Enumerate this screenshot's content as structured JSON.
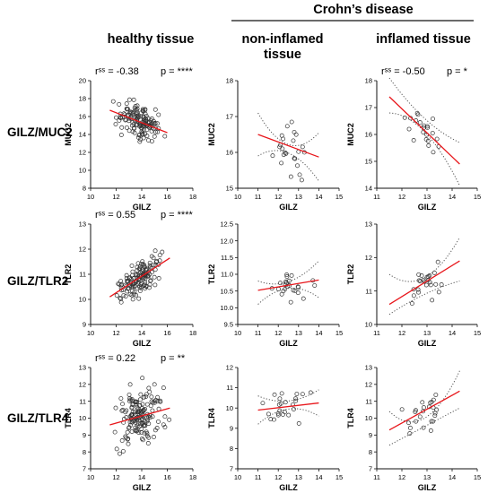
{
  "header": {
    "group_title": "Crohn’s disease",
    "columns": [
      "healthy tissue",
      "non-inflamed tissue",
      "inflamed tissue"
    ]
  },
  "rows": [
    "GILZ/MUC2",
    "GILZ/TLR2",
    "GILZ/TLR4"
  ],
  "colors": {
    "fit_line": "#e8161b",
    "points": "#333333",
    "ci": "#555555"
  },
  "chart_data": [
    {
      "type": "scatter",
      "row": 0,
      "col": 0,
      "xlabel": "GILZ",
      "ylabel": "MUC2",
      "xlim": [
        10,
        18
      ],
      "ylim": [
        8,
        20
      ],
      "xticks": [
        10,
        12,
        14,
        16,
        18
      ],
      "yticks": [
        8,
        10,
        12,
        14,
        16,
        18,
        20
      ],
      "stat_r": "rˢˢ = -0.38",
      "stat_p": "p = ****",
      "fit": {
        "x": [
          11.5,
          16.0
        ],
        "y": [
          16.7,
          14.2
        ]
      },
      "ci": null,
      "scatter_seed": 11,
      "n": 140,
      "x_range": [
        11.3,
        16.2
      ],
      "spread": 1.1
    },
    {
      "type": "scatter",
      "row": 0,
      "col": 1,
      "xlabel": "GILZ",
      "ylabel": "MUC2",
      "xlim": [
        10,
        15
      ],
      "ylim": [
        15,
        18
      ],
      "xticks": [
        10,
        11,
        12,
        13,
        14,
        15
      ],
      "yticks": [
        15,
        16,
        17,
        18
      ],
      "stat_r": "",
      "stat_p": "",
      "fit": {
        "x": [
          11.0,
          14.0
        ],
        "y": [
          16.5,
          15.87
        ]
      },
      "ci": {
        "upper": [
          17.1,
          16.22,
          16.55
        ],
        "lower": [
          15.9,
          15.98,
          15.2
        ]
      },
      "scatter_seed": 23,
      "n": 24,
      "x_range": [
        11.0,
        14.0
      ],
      "spread": 0.5
    },
    {
      "type": "scatter",
      "row": 0,
      "col": 2,
      "xlabel": "GILZ",
      "ylabel": "MUC2",
      "xlim": [
        11,
        15
      ],
      "ylim": [
        14,
        18
      ],
      "xticks": [
        11,
        12,
        13,
        14,
        15
      ],
      "yticks": [
        14,
        15,
        16,
        17,
        18
      ],
      "stat_r": "rˢˢ = -0.50",
      "stat_p": "p = *",
      "fit": {
        "x": [
          11.5,
          14.3
        ],
        "y": [
          17.4,
          14.9
        ]
      },
      "ci": {
        "upper": [
          18.1,
          16.6,
          15.7
        ],
        "lower": [
          16.8,
          16.1,
          14.1
        ]
      },
      "scatter_seed": 37,
      "n": 22,
      "x_range": [
        11.5,
        14.3
      ],
      "spread": 0.4
    },
    {
      "type": "scatter",
      "row": 1,
      "col": 0,
      "xlabel": "GILZ",
      "ylabel": "TLR2",
      "xlim": [
        10,
        18
      ],
      "ylim": [
        9,
        13
      ],
      "xticks": [
        10,
        12,
        14,
        16,
        18
      ],
      "yticks": [
        9,
        10,
        11,
        12,
        13
      ],
      "stat_r": "rˢˢ = 0.55",
      "stat_p": "p = ****",
      "fit": {
        "x": [
          11.5,
          16.2
        ],
        "y": [
          10.1,
          11.65
        ]
      },
      "ci": null,
      "scatter_seed": 53,
      "n": 140,
      "x_range": [
        11.3,
        16.3
      ],
      "spread": 0.4
    },
    {
      "type": "scatter",
      "row": 1,
      "col": 1,
      "xlabel": "GILZ",
      "ylabel": "TLR2",
      "xlim": [
        10,
        15
      ],
      "ylim": [
        9.5,
        12.5
      ],
      "xticks": [
        10,
        11,
        12,
        13,
        14,
        15
      ],
      "yticks": [
        9.5,
        10.0,
        10.5,
        11.0,
        11.5,
        12.0,
        12.5
      ],
      "stat_r": "",
      "stat_p": "",
      "fit": {
        "x": [
          11.0,
          14.0
        ],
        "y": [
          10.52,
          10.83
        ]
      },
      "ci": {
        "upper": [
          10.8,
          10.78,
          11.4
        ],
        "lower": [
          10.1,
          10.58,
          10.3
        ]
      },
      "scatter_seed": 71,
      "n": 24,
      "x_range": [
        11.0,
        14.0
      ],
      "spread": 0.35
    },
    {
      "type": "scatter",
      "row": 1,
      "col": 2,
      "xlabel": "GILZ",
      "ylabel": "TLR2",
      "xlim": [
        11,
        15
      ],
      "ylim": [
        10,
        13
      ],
      "xticks": [
        11,
        12,
        13,
        14,
        15
      ],
      "yticks": [
        10,
        11,
        12,
        13
      ],
      "stat_r": "",
      "stat_p": "",
      "fit": {
        "x": [
          11.5,
          14.3
        ],
        "y": [
          10.6,
          11.9
        ]
      },
      "ci": {
        "upper": [
          11.5,
          11.4,
          12.6
        ],
        "lower": [
          10.3,
          10.9,
          11.3
        ]
      },
      "scatter_seed": 89,
      "n": 24,
      "x_range": [
        11.5,
        14.3
      ],
      "spread": 0.35
    },
    {
      "type": "scatter",
      "row": 2,
      "col": 0,
      "xlabel": "GILZ",
      "ylabel": "TLR4",
      "xlim": [
        10,
        18
      ],
      "ylim": [
        7,
        13
      ],
      "xticks": [
        10,
        12,
        14,
        16,
        18
      ],
      "yticks": [
        7,
        8,
        9,
        10,
        11,
        12,
        13
      ],
      "stat_r": "rˢˢ = 0.22",
      "stat_p": "p = **",
      "fit": {
        "x": [
          11.5,
          16.2
        ],
        "y": [
          9.6,
          10.6
        ]
      },
      "ci": null,
      "scatter_seed": 97,
      "n": 160,
      "x_range": [
        11.3,
        16.3
      ],
      "spread": 0.95
    },
    {
      "type": "scatter",
      "row": 2,
      "col": 1,
      "xlabel": "GILZ",
      "ylabel": "TLR4",
      "xlim": [
        10,
        15
      ],
      "ylim": [
        7,
        12
      ],
      "xticks": [
        10,
        11,
        12,
        13,
        14,
        15
      ],
      "yticks": [
        7,
        8,
        9,
        10,
        11,
        12
      ],
      "stat_r": "",
      "stat_p": "",
      "fit": {
        "x": [
          11.0,
          14.0
        ],
        "y": [
          9.9,
          10.25
        ]
      },
      "ci": {
        "upper": [
          10.6,
          10.35,
          10.9
        ],
        "lower": [
          9.2,
          9.95,
          9.6
        ]
      },
      "scatter_seed": 113,
      "n": 24,
      "x_range": [
        11.0,
        14.0
      ],
      "spread": 0.7
    },
    {
      "type": "scatter",
      "row": 2,
      "col": 2,
      "xlabel": "GILZ",
      "ylabel": "TLR4",
      "xlim": [
        11,
        15
      ],
      "ylim": [
        7,
        13
      ],
      "xticks": [
        11,
        12,
        13,
        14,
        15
      ],
      "yticks": [
        7,
        8,
        9,
        10,
        11,
        12,
        13
      ],
      "stat_r": "",
      "stat_p": "",
      "fit": {
        "x": [
          11.5,
          14.3
        ],
        "y": [
          9.3,
          11.6
        ]
      },
      "ci": {
        "upper": [
          10.4,
          10.0,
          12.8
        ],
        "lower": [
          8.4,
          9.5,
          10.6
        ]
      },
      "scatter_seed": 127,
      "n": 24,
      "x_range": [
        11.5,
        14.3
      ],
      "spread": 0.7
    }
  ]
}
